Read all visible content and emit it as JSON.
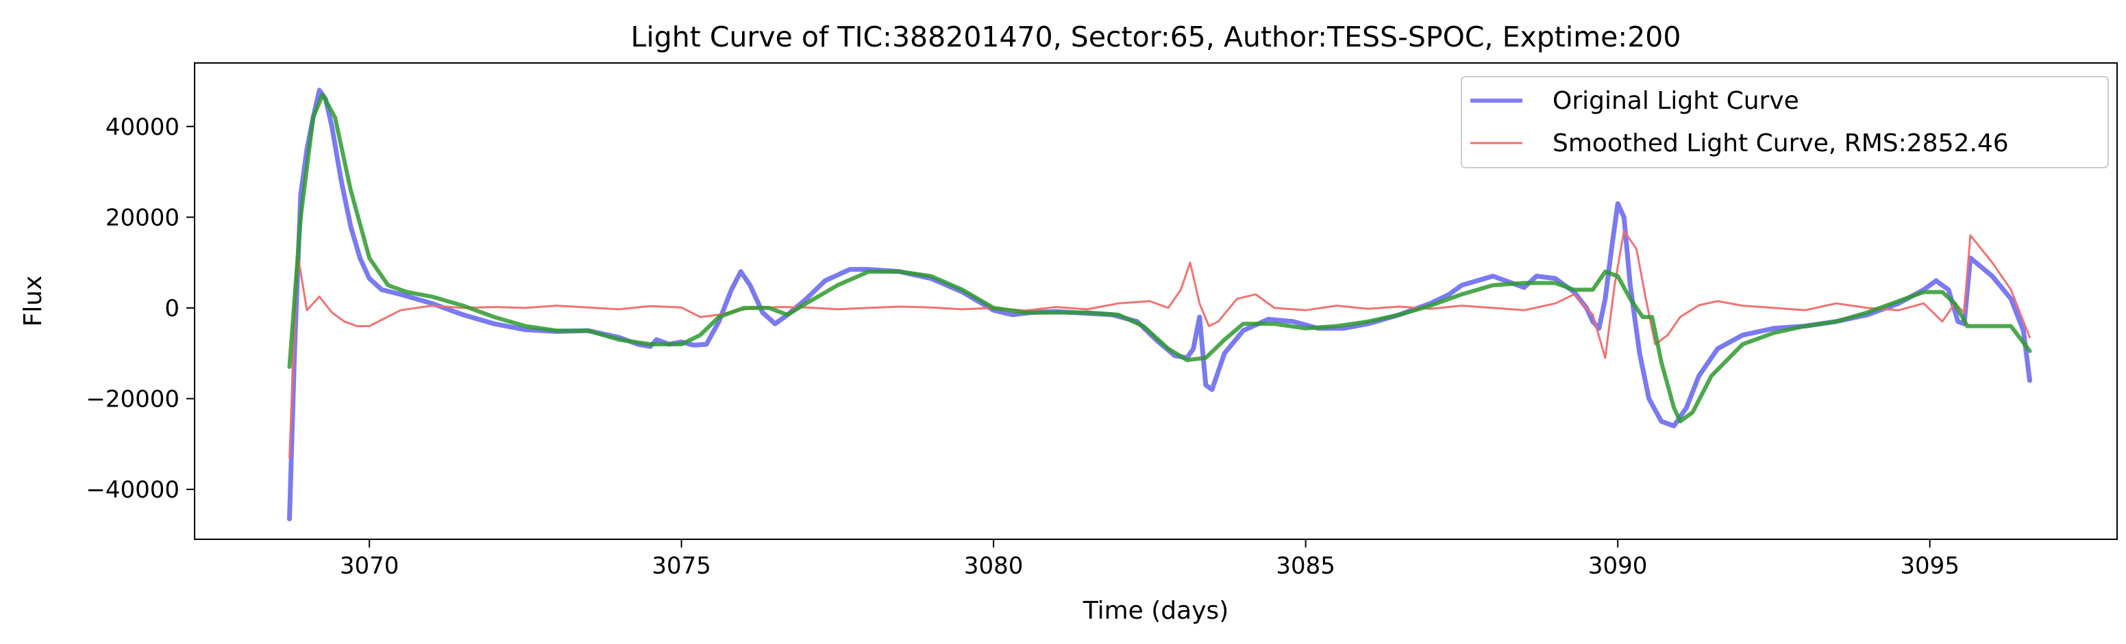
{
  "chart_data": {
    "type": "line",
    "title": "Light Curve of TIC:388201470, Sector:65, Author:TESS-SPOC, Exptime:200",
    "xlabel": "Time (days)",
    "ylabel": "Flux",
    "xlim": [
      3067.2,
      3098.0
    ],
    "ylim": [
      -51000,
      54000
    ],
    "xticks": [
      3070,
      3075,
      3080,
      3085,
      3090,
      3095
    ],
    "yticks": [
      -40000,
      -20000,
      0,
      20000,
      40000
    ],
    "grid": false,
    "legend_position": "top-right",
    "series": [
      {
        "name": "Original Light Curve",
        "color": "#5555ee",
        "x": [
          3068.72,
          3068.8,
          3068.9,
          3069.0,
          3069.1,
          3069.2,
          3069.3,
          3069.4,
          3069.55,
          3069.7,
          3069.85,
          3070.0,
          3070.2,
          3070.5,
          3071.0,
          3071.5,
          3072.0,
          3072.5,
          3073.0,
          3073.5,
          3074.0,
          3074.3,
          3074.5,
          3074.6,
          3074.8,
          3075.0,
          3075.2,
          3075.4,
          3075.6,
          3075.8,
          3075.95,
          3076.1,
          3076.3,
          3076.5,
          3076.7,
          3077.0,
          3077.3,
          3077.7,
          3078.0,
          3078.5,
          3079.0,
          3079.5,
          3080.0,
          3080.3,
          3080.6,
          3081.0,
          3081.5,
          3081.9,
          3082.3,
          3082.6,
          3082.9,
          3083.1,
          3083.2,
          3083.3,
          3083.4,
          3083.5,
          3083.7,
          3084.0,
          3084.4,
          3084.8,
          3085.2,
          3085.6,
          3086.0,
          3086.5,
          3087.0,
          3087.3,
          3087.5,
          3088.0,
          3088.5,
          3088.7,
          3089.0,
          3089.3,
          3089.5,
          3089.6,
          3089.7,
          3089.8,
          3089.9,
          3090.0,
          3090.1,
          3090.2,
          3090.35,
          3090.5,
          3090.7,
          3090.9,
          3091.1,
          3091.3,
          3091.6,
          3092.0,
          3092.5,
          3093.0,
          3093.5,
          3094.0,
          3094.5,
          3094.9,
          3095.1,
          3095.3,
          3095.45,
          3095.55,
          3095.65,
          3096.0,
          3096.3,
          3096.5,
          3096.6
        ],
        "y": [
          -46500,
          -10000,
          25000,
          35000,
          42000,
          48000,
          46000,
          40000,
          28000,
          18000,
          11000,
          6500,
          4000,
          3000,
          1000,
          -1500,
          -3500,
          -4800,
          -5200,
          -5000,
          -6500,
          -8000,
          -8500,
          -7000,
          -8000,
          -7500,
          -8200,
          -8000,
          -3000,
          4000,
          8000,
          5000,
          -1000,
          -3500,
          -1500,
          2000,
          6000,
          8500,
          8500,
          8000,
          6500,
          3500,
          -500,
          -1500,
          -1000,
          -800,
          -1200,
          -1500,
          -3000,
          -7000,
          -10500,
          -11000,
          -9000,
          -2000,
          -17000,
          -18000,
          -10000,
          -5000,
          -2500,
          -3000,
          -4500,
          -4500,
          -3500,
          -1500,
          1000,
          3000,
          5000,
          7000,
          4500,
          7000,
          6500,
          3500,
          0,
          -3000,
          -4500,
          2000,
          13000,
          23000,
          20000,
          5000,
          -10000,
          -20000,
          -25000,
          -26000,
          -22000,
          -15000,
          -9000,
          -6000,
          -4500,
          -4000,
          -3000,
          -1500,
          1000,
          4000,
          6000,
          4000,
          -3000,
          -3500,
          11000,
          7000,
          2000,
          -5000,
          -16000
        ]
      },
      {
        "name": "Smoothed Light Curve, RMS:2852.46",
        "color": "#f06c6c",
        "x": [
          3068.72,
          3068.85,
          3069.0,
          3069.2,
          3069.4,
          3069.6,
          3069.8,
          3070.0,
          3070.5,
          3071.0,
          3071.5,
          3072.0,
          3072.5,
          3073.0,
          3073.5,
          3074.0,
          3074.5,
          3075.0,
          3075.3,
          3075.6,
          3075.9,
          3076.2,
          3076.6,
          3077.0,
          3077.5,
          3078.0,
          3078.5,
          3079.0,
          3079.5,
          3080.0,
          3080.5,
          3081.0,
          3081.5,
          3082.0,
          3082.5,
          3082.8,
          3083.0,
          3083.15,
          3083.3,
          3083.45,
          3083.6,
          3083.9,
          3084.2,
          3084.5,
          3085.0,
          3085.5,
          3086.0,
          3086.5,
          3087.0,
          3087.5,
          3088.0,
          3088.5,
          3089.0,
          3089.3,
          3089.6,
          3089.8,
          3089.95,
          3090.1,
          3090.3,
          3090.45,
          3090.6,
          3090.8,
          3091.0,
          3091.3,
          3091.6,
          3092.0,
          3092.5,
          3093.0,
          3093.5,
          3094.0,
          3094.5,
          3094.9,
          3095.2,
          3095.4,
          3095.55,
          3095.65,
          3096.0,
          3096.3,
          3096.6
        ],
        "y": [
          -33000,
          12000,
          -500,
          2500,
          -1000,
          -3000,
          -4000,
          -4000,
          -500,
          500,
          0,
          200,
          0,
          500,
          100,
          -300,
          400,
          100,
          -2000,
          -1500,
          -500,
          0,
          200,
          100,
          -300,
          0,
          300,
          100,
          -300,
          0,
          -600,
          200,
          -300,
          1000,
          1500,
          0,
          4000,
          10000,
          1000,
          -4000,
          -3000,
          2000,
          3000,
          0,
          -500,
          500,
          -200,
          300,
          -200,
          500,
          0,
          -500,
          1000,
          3000,
          -1500,
          -11000,
          5000,
          17000,
          13000,
          2000,
          -8000,
          -6000,
          -2000,
          600,
          1500,
          500,
          0,
          -500,
          1000,
          0,
          -500,
          1000,
          -3000,
          1000,
          -1000,
          16000,
          10000,
          4000,
          -6500
        ]
      },
      {
        "name": "",
        "color": "#2e9a2e",
        "x": [
          3068.72,
          3068.9,
          3069.1,
          3069.25,
          3069.45,
          3069.7,
          3070.0,
          3070.3,
          3070.6,
          3071.0,
          3071.5,
          3072.0,
          3072.5,
          3073.0,
          3073.5,
          3074.0,
          3074.5,
          3075.0,
          3075.3,
          3075.6,
          3076.0,
          3076.4,
          3076.7,
          3077.0,
          3077.5,
          3078.0,
          3078.5,
          3079.0,
          3079.5,
          3080.0,
          3080.5,
          3081.0,
          3081.5,
          3082.0,
          3082.4,
          3082.8,
          3083.1,
          3083.4,
          3083.7,
          3084.0,
          3084.5,
          3085.0,
          3085.5,
          3086.0,
          3086.5,
          3087.0,
          3087.5,
          3088.0,
          3088.5,
          3089.0,
          3089.3,
          3089.6,
          3089.8,
          3090.0,
          3090.2,
          3090.4,
          3090.55,
          3090.7,
          3090.9,
          3091.0,
          3091.2,
          3091.5,
          3092.0,
          3092.5,
          3093.0,
          3093.5,
          3094.0,
          3094.5,
          3094.9,
          3095.2,
          3095.4,
          3095.6,
          3096.0,
          3096.3,
          3096.6
        ],
        "y": [
          -13000,
          20000,
          42000,
          47000,
          42000,
          26000,
          11000,
          5000,
          3500,
          2500,
          500,
          -2000,
          -4000,
          -5000,
          -5000,
          -7000,
          -8000,
          -8000,
          -6000,
          -2000,
          0,
          0,
          -1500,
          1000,
          5000,
          8000,
          8000,
          7000,
          4000,
          0,
          -1000,
          -1000,
          -1000,
          -1500,
          -4000,
          -9000,
          -11500,
          -11000,
          -7000,
          -3500,
          -3500,
          -4500,
          -4000,
          -3000,
          -1500,
          500,
          3000,
          5000,
          5500,
          5500,
          4000,
          4000,
          8000,
          7000,
          2000,
          -2000,
          -2000,
          -12000,
          -22000,
          -25000,
          -23000,
          -15000,
          -8000,
          -5500,
          -4000,
          -3000,
          -1000,
          1500,
          3500,
          3500,
          1000,
          -4000,
          -4000,
          -4000,
          -9500
        ]
      }
    ]
  }
}
